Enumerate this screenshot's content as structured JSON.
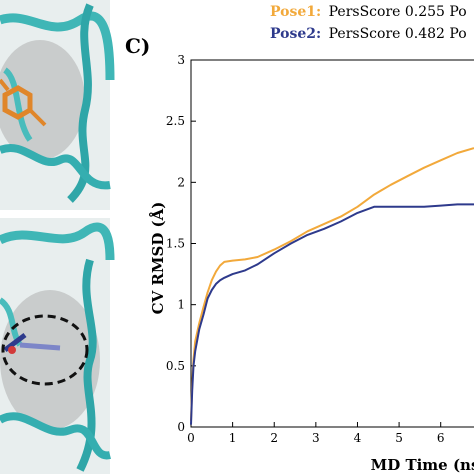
{
  "panel_label": "C)",
  "legend": [
    {
      "prefix": "Pose1:",
      "text": "PersScore 0.255 Po",
      "color": "#f2a93b"
    },
    {
      "prefix": "Pose2:",
      "text": "PersScore 0.482 Po",
      "color": "#2e3a8c"
    }
  ],
  "chart_data": {
    "type": "line",
    "xlabel": "MD Time (ns",
    "ylabel": "CV RMSD (Å)",
    "xlim": [
      0,
      6.8
    ],
    "ylim": [
      0,
      3
    ],
    "x_ticks": [
      "0",
      "1",
      "2",
      "3",
      "4",
      "5",
      "6"
    ],
    "y_ticks": [
      "0",
      "0.5",
      "1",
      "1.5",
      "2",
      "2.5",
      "3"
    ],
    "series": [
      {
        "name": "Pose1",
        "color": "#f2a93b",
        "points": [
          [
            0,
            0.05
          ],
          [
            0.03,
            0.35
          ],
          [
            0.06,
            0.55
          ],
          [
            0.1,
            0.7
          ],
          [
            0.2,
            0.85
          ],
          [
            0.3,
            0.98
          ],
          [
            0.4,
            1.1
          ],
          [
            0.5,
            1.2
          ],
          [
            0.6,
            1.27
          ],
          [
            0.7,
            1.32
          ],
          [
            0.8,
            1.35
          ],
          [
            1.0,
            1.36
          ],
          [
            1.3,
            1.37
          ],
          [
            1.6,
            1.39
          ],
          [
            2.0,
            1.45
          ],
          [
            2.4,
            1.52
          ],
          [
            2.8,
            1.6
          ],
          [
            3.2,
            1.66
          ],
          [
            3.6,
            1.72
          ],
          [
            4.0,
            1.8
          ],
          [
            4.4,
            1.9
          ],
          [
            4.8,
            1.98
          ],
          [
            5.2,
            2.05
          ],
          [
            5.6,
            2.12
          ],
          [
            6.0,
            2.18
          ],
          [
            6.4,
            2.24
          ],
          [
            6.8,
            2.28
          ]
        ]
      },
      {
        "name": "Pose2",
        "color": "#2e3a8c",
        "points": [
          [
            0,
            0.02
          ],
          [
            0.03,
            0.3
          ],
          [
            0.06,
            0.5
          ],
          [
            0.1,
            0.62
          ],
          [
            0.2,
            0.8
          ],
          [
            0.3,
            0.92
          ],
          [
            0.4,
            1.05
          ],
          [
            0.5,
            1.12
          ],
          [
            0.6,
            1.17
          ],
          [
            0.7,
            1.2
          ],
          [
            0.8,
            1.22
          ],
          [
            1.0,
            1.25
          ],
          [
            1.3,
            1.28
          ],
          [
            1.6,
            1.33
          ],
          [
            2.0,
            1.42
          ],
          [
            2.4,
            1.5
          ],
          [
            2.8,
            1.57
          ],
          [
            3.2,
            1.62
          ],
          [
            3.6,
            1.68
          ],
          [
            4.0,
            1.75
          ],
          [
            4.4,
            1.8
          ],
          [
            4.8,
            1.8
          ],
          [
            5.2,
            1.8
          ],
          [
            5.6,
            1.8
          ],
          [
            6.0,
            1.81
          ],
          [
            6.4,
            1.82
          ],
          [
            6.8,
            1.82
          ]
        ]
      }
    ]
  }
}
